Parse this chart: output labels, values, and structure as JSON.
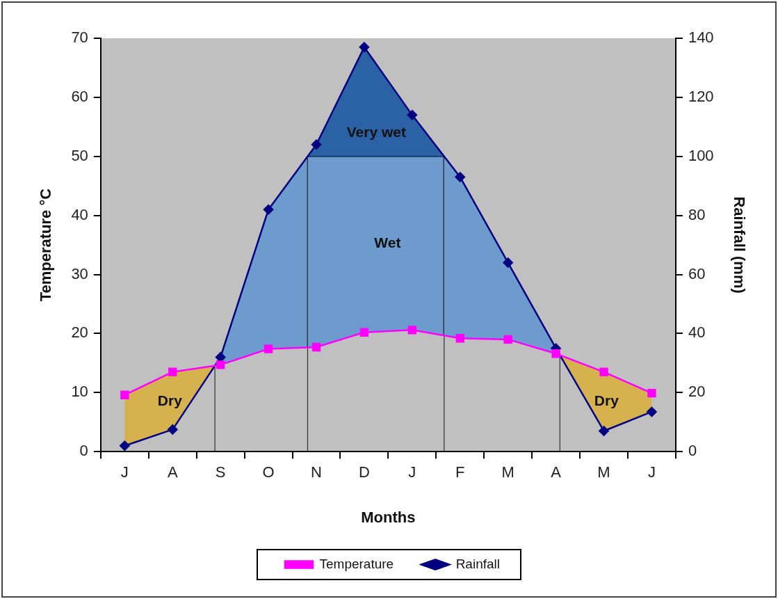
{
  "chart_data": {
    "type": "line",
    "xlabel": "Months",
    "ylabel": "Temperature °C",
    "y2label": "Rainfall (mm)",
    "categories": [
      "J",
      "A",
      "S",
      "O",
      "N",
      "D",
      "J",
      "F",
      "M",
      "A",
      "M",
      "J"
    ],
    "ylim": [
      0,
      70
    ],
    "yticks": [
      0,
      10,
      20,
      30,
      40,
      50,
      60,
      70
    ],
    "y2lim": [
      0,
      140
    ],
    "y2ticks": [
      0,
      20,
      40,
      60,
      80,
      100,
      120,
      140
    ],
    "series": [
      {
        "name": "Temperature",
        "color": "#ff00ff",
        "marker": "square",
        "values": [
          9.6,
          13.5,
          14.7,
          17.4,
          17.7,
          20.2,
          20.6,
          19.2,
          19.0,
          16.6,
          13.5,
          9.9
        ]
      },
      {
        "name": "Rainfall",
        "color": "#000080",
        "marker": "diamond",
        "axis": "y2",
        "values": [
          2,
          7.5,
          32,
          82,
          104,
          137,
          114,
          93,
          64,
          35,
          7,
          13.5
        ]
      }
    ],
    "ref_lines": [
      {
        "axis": "y2",
        "value": 100,
        "color": "#1a3f70"
      }
    ],
    "annotations": [
      "Very wet",
      "Wet",
      "Dry",
      "Dry"
    ],
    "grid": false,
    "legend": "bottom",
    "line_style": "solid"
  }
}
